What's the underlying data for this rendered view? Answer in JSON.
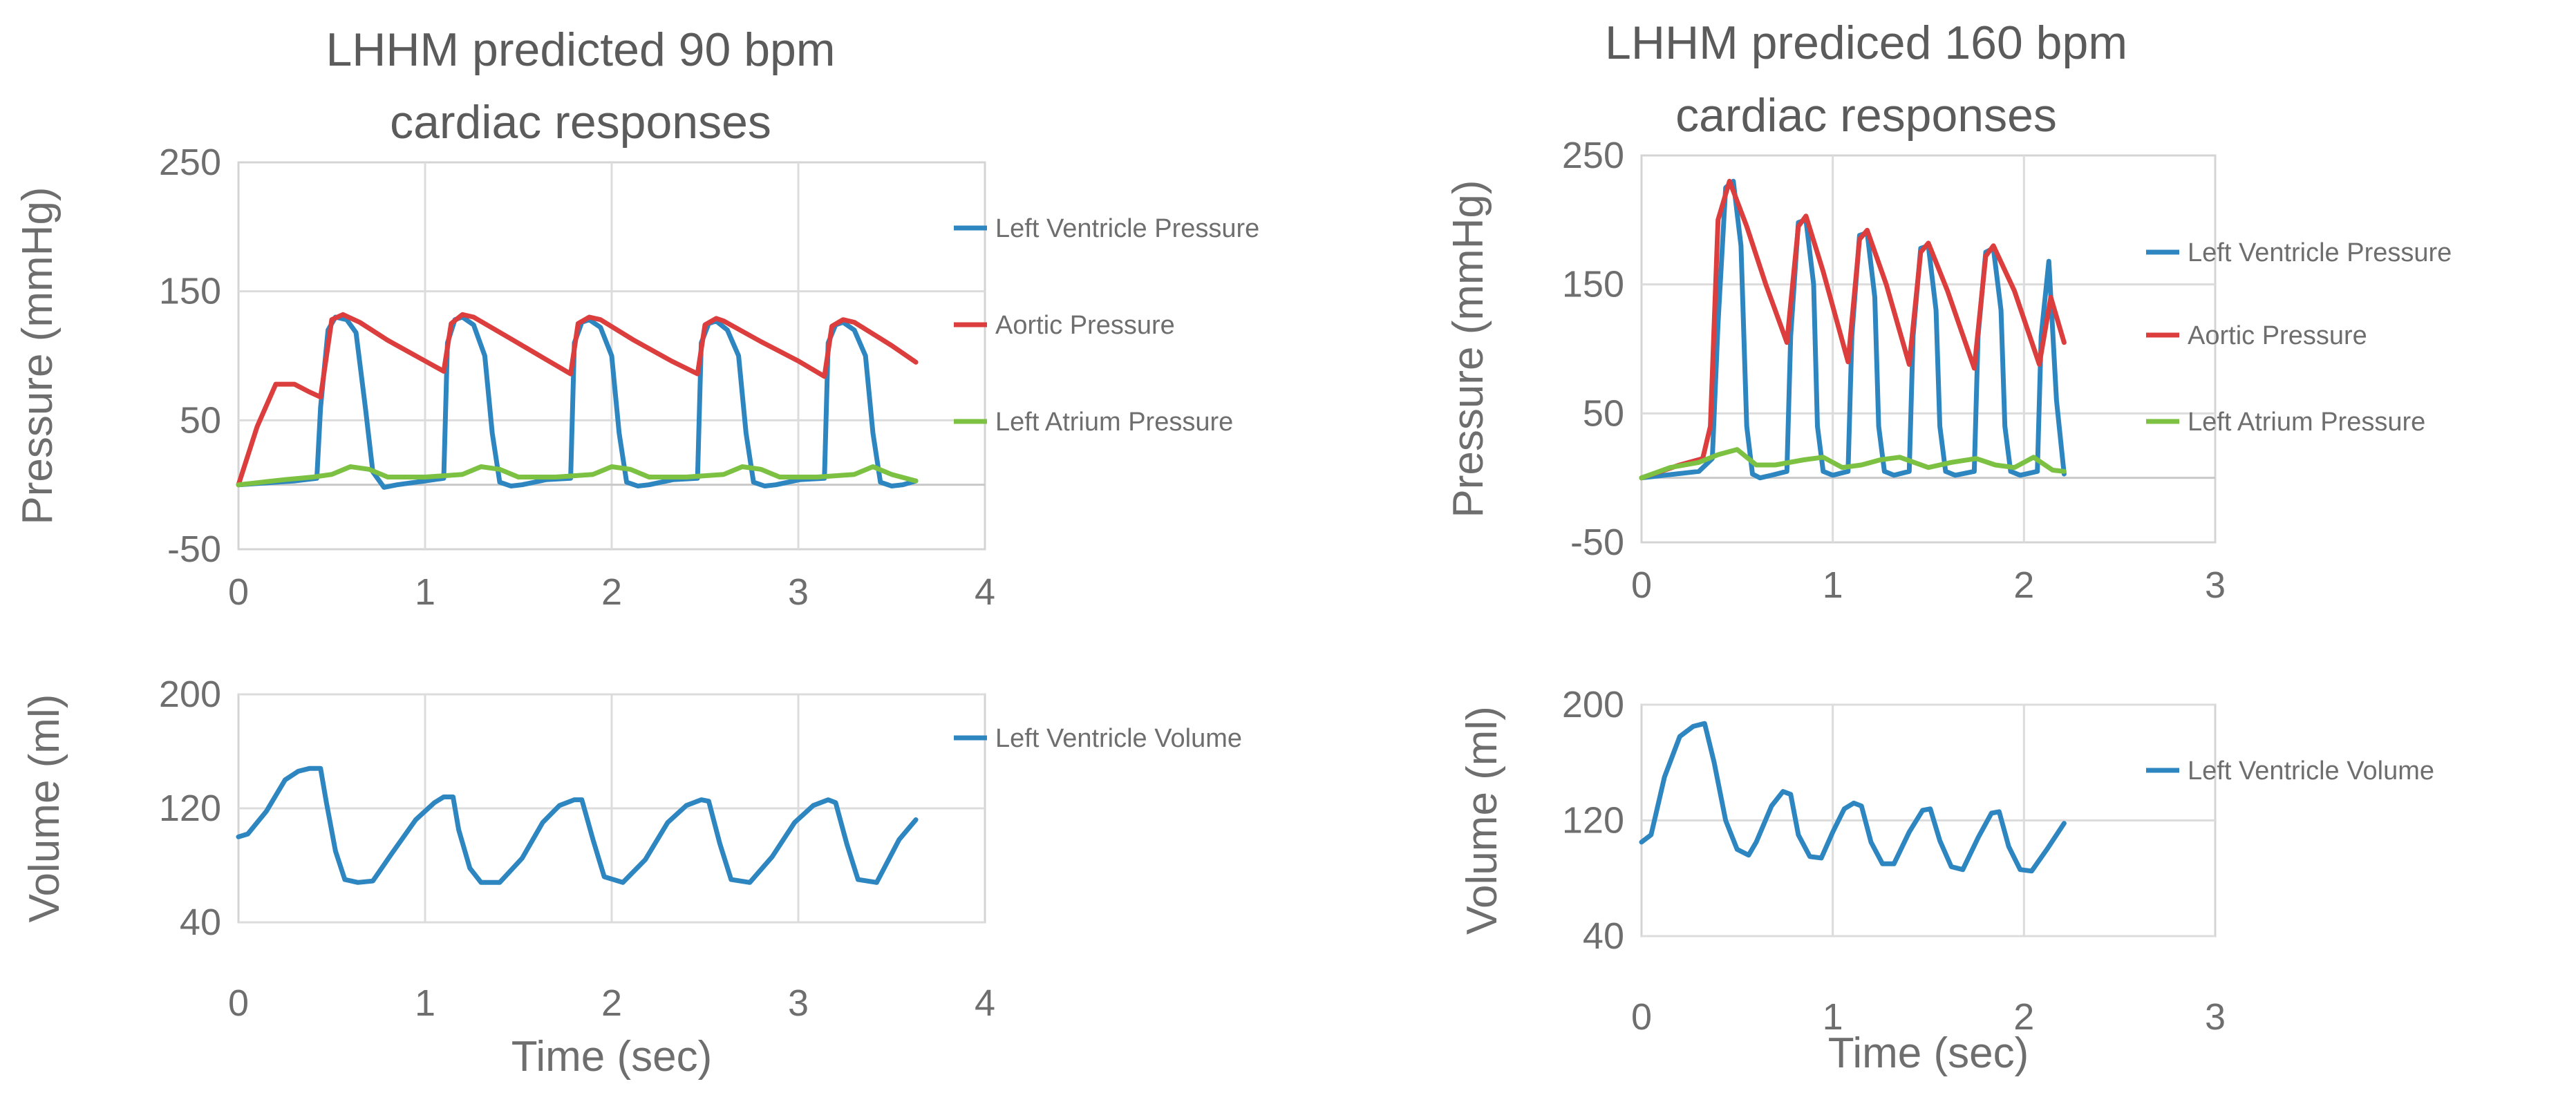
{
  "colors": {
    "lv_pressure": "#2e86c1",
    "aortic": "#dc3d3d",
    "la_pressure": "#7cc142",
    "lv_volume": "#2e86c1"
  },
  "panels": [
    {
      "title": [
        "LHHM predicted 90 bpm",
        "cardiac responses"
      ],
      "pressure_ylabel": "Pressure (mmHg)",
      "volume_ylabel": "Volume (ml)",
      "xlabel": "Time (sec)",
      "pressure_yticks": [
        "250",
        "150",
        "50",
        "-50"
      ],
      "volume_yticks": [
        "200",
        "120",
        "40"
      ],
      "pressure_xticks": [
        "0",
        "1",
        "2",
        "3",
        "4"
      ],
      "volume_xticks": [
        "0",
        "1",
        "2",
        "3",
        "4"
      ],
      "legend_pressure": [
        "Left Ventricle Pressure",
        "Aortic Pressure",
        "Left Atrium Pressure"
      ],
      "legend_volume": [
        "Left Ventricle Volume"
      ]
    },
    {
      "title": [
        "LHHM prediced 160 bpm",
        "cardiac responses"
      ],
      "pressure_ylabel": "Pressure (mmHg)",
      "volume_ylabel": "Volume (ml)",
      "xlabel": "Time (sec)",
      "pressure_yticks": [
        "250",
        "150",
        "50",
        "-50"
      ],
      "volume_yticks": [
        "200",
        "120",
        "40"
      ],
      "pressure_xticks": [
        "0",
        "1",
        "2",
        "3"
      ],
      "volume_xticks": [
        "0",
        "1",
        "2",
        "3"
      ],
      "legend_pressure": [
        "Left Ventricle Pressure",
        "Aortic Pressure",
        "Left Atrium Pressure"
      ],
      "legend_volume": [
        "Left Ventricle Volume"
      ]
    }
  ],
  "chart_data": [
    {
      "type": "line",
      "title": "LHHM predicted 90 bpm cardiac responses",
      "xlabel": "",
      "ylabel": "Pressure (mmHg)",
      "xlim": [
        0,
        4
      ],
      "ylim": [
        -50,
        250
      ],
      "series": [
        {
          "name": "Left Ventricle Pressure",
          "x": [
            0,
            0.3,
            0.42,
            0.44,
            0.48,
            0.52,
            0.58,
            0.63,
            0.68,
            0.72,
            0.78,
            0.85,
            1.0,
            1.1,
            1.12,
            1.16,
            1.2,
            1.26,
            1.32,
            1.36,
            1.4,
            1.46,
            1.52,
            1.65,
            1.78,
            1.8,
            1.84,
            1.88,
            1.94,
            2.0,
            2.04,
            2.08,
            2.14,
            2.2,
            2.33,
            2.46,
            2.48,
            2.52,
            2.56,
            2.62,
            2.68,
            2.72,
            2.76,
            2.82,
            2.88,
            3.01,
            3.14,
            3.16,
            3.2,
            3.24,
            3.3,
            3.36,
            3.4,
            3.44,
            3.5,
            3.56,
            3.63
          ],
          "y": [
            0,
            3,
            5,
            60,
            120,
            130,
            128,
            118,
            60,
            10,
            -2,
            0,
            3,
            5,
            110,
            128,
            130,
            124,
            100,
            40,
            2,
            -1,
            0,
            4,
            5,
            110,
            126,
            128,
            122,
            100,
            40,
            2,
            -1,
            0,
            4,
            5,
            110,
            125,
            127,
            120,
            100,
            40,
            2,
            -1,
            0,
            4,
            5,
            110,
            124,
            126,
            120,
            100,
            40,
            2,
            -1,
            0,
            3
          ]
        },
        {
          "name": "Aortic Pressure",
          "x": [
            0,
            0.1,
            0.2,
            0.3,
            0.38,
            0.44,
            0.5,
            0.56,
            0.65,
            0.8,
            1.0,
            1.1,
            1.14,
            1.2,
            1.26,
            1.45,
            1.65,
            1.78,
            1.82,
            1.88,
            1.94,
            2.12,
            2.32,
            2.46,
            2.5,
            2.56,
            2.6,
            2.8,
            3.0,
            3.14,
            3.18,
            3.24,
            3.3,
            3.5,
            3.63
          ],
          "y": [
            0,
            45,
            78,
            78,
            72,
            68,
            128,
            132,
            126,
            112,
            96,
            88,
            125,
            132,
            130,
            114,
            97,
            86,
            125,
            130,
            128,
            112,
            96,
            86,
            124,
            129,
            127,
            111,
            96,
            84,
            123,
            128,
            126,
            108,
            95
          ]
        },
        {
          "name": "Left Atrium Pressure",
          "x": [
            0,
            0.25,
            0.4,
            0.5,
            0.6,
            0.7,
            0.8,
            1.0,
            1.2,
            1.3,
            1.4,
            1.5,
            1.7,
            1.9,
            2.0,
            2.1,
            2.2,
            2.4,
            2.6,
            2.7,
            2.8,
            2.9,
            3.1,
            3.3,
            3.4,
            3.5,
            3.63
          ],
          "y": [
            0,
            4,
            6,
            8,
            14,
            12,
            6,
            6,
            8,
            14,
            12,
            6,
            6,
            8,
            14,
            12,
            6,
            6,
            8,
            14,
            12,
            6,
            6,
            8,
            14,
            8,
            3
          ]
        }
      ]
    },
    {
      "type": "line",
      "title": "",
      "xlabel": "Time (sec)",
      "ylabel": "Volume (ml)",
      "xlim": [
        0,
        4
      ],
      "ylim": [
        40,
        200
      ],
      "series": [
        {
          "name": "Left Ventricle Volume",
          "x": [
            0,
            0.05,
            0.15,
            0.25,
            0.32,
            0.38,
            0.44,
            0.47,
            0.52,
            0.57,
            0.64,
            0.72,
            0.82,
            0.95,
            1.05,
            1.1,
            1.15,
            1.18,
            1.24,
            1.3,
            1.4,
            1.52,
            1.63,
            1.72,
            1.8,
            1.84,
            1.9,
            1.96,
            2.06,
            2.18,
            2.3,
            2.4,
            2.48,
            2.52,
            2.58,
            2.64,
            2.74,
            2.86,
            2.98,
            3.08,
            3.16,
            3.2,
            3.26,
            3.32,
            3.42,
            3.54,
            3.63
          ],
          "y": [
            100,
            102,
            118,
            140,
            146,
            148,
            148,
            125,
            90,
            70,
            68,
            69,
            88,
            112,
            124,
            128,
            128,
            105,
            78,
            68,
            68,
            85,
            110,
            122,
            126,
            126,
            98,
            72,
            68,
            84,
            110,
            122,
            126,
            125,
            95,
            70,
            68,
            86,
            110,
            122,
            126,
            124,
            95,
            70,
            68,
            98,
            112
          ]
        }
      ]
    },
    {
      "type": "line",
      "title": "LHHM prediced 160 bpm cardiac responses",
      "xlabel": "",
      "ylabel": "Pressure (mmHg)",
      "xlim": [
        0,
        3
      ],
      "ylim": [
        -50,
        250
      ],
      "series": [
        {
          "name": "Left Ventricle Pressure",
          "x": [
            0,
            0.3,
            0.37,
            0.4,
            0.44,
            0.48,
            0.52,
            0.55,
            0.58,
            0.62,
            0.68,
            0.76,
            0.78,
            0.82,
            0.86,
            0.9,
            0.92,
            0.95,
            1.0,
            1.08,
            1.1,
            1.14,
            1.18,
            1.22,
            1.24,
            1.27,
            1.32,
            1.4,
            1.42,
            1.46,
            1.5,
            1.54,
            1.56,
            1.59,
            1.64,
            1.74,
            1.76,
            1.8,
            1.84,
            1.88,
            1.9,
            1.93,
            1.98,
            2.07,
            2.09,
            2.13,
            2.17,
            2.21
          ],
          "y": [
            0,
            5,
            15,
            120,
            225,
            230,
            180,
            40,
            3,
            0,
            2,
            5,
            110,
            198,
            200,
            150,
            40,
            5,
            2,
            5,
            110,
            188,
            190,
            140,
            40,
            5,
            2,
            5,
            110,
            178,
            180,
            130,
            40,
            5,
            2,
            5,
            110,
            175,
            178,
            130,
            40,
            5,
            2,
            5,
            110,
            168,
            60,
            3
          ]
        },
        {
          "name": "Aortic Pressure",
          "x": [
            0,
            0.2,
            0.32,
            0.36,
            0.4,
            0.46,
            0.55,
            0.65,
            0.76,
            0.82,
            0.86,
            0.95,
            1.08,
            1.14,
            1.18,
            1.28,
            1.4,
            1.46,
            1.5,
            1.6,
            1.74,
            1.8,
            1.84,
            1.95,
            2.08,
            2.14,
            2.21
          ],
          "y": [
            0,
            10,
            15,
            40,
            200,
            230,
            195,
            150,
            105,
            195,
            203,
            160,
            90,
            185,
            192,
            150,
            88,
            175,
            182,
            145,
            85,
            172,
            180,
            145,
            88,
            140,
            105
          ]
        },
        {
          "name": "Left Atrium Pressure",
          "x": [
            0,
            0.15,
            0.3,
            0.4,
            0.5,
            0.6,
            0.7,
            0.85,
            0.95,
            1.05,
            1.15,
            1.25,
            1.35,
            1.5,
            1.62,
            1.75,
            1.85,
            1.95,
            2.05,
            2.15,
            2.21
          ],
          "y": [
            0,
            8,
            12,
            18,
            22,
            10,
            10,
            14,
            16,
            8,
            10,
            14,
            16,
            8,
            12,
            15,
            10,
            8,
            16,
            6,
            5
          ]
        }
      ]
    },
    {
      "type": "line",
      "title": "",
      "xlabel": "Time (sec)",
      "ylabel": "Volume (ml)",
      "xlim": [
        0,
        3
      ],
      "ylim": [
        40,
        200
      ],
      "series": [
        {
          "name": "Left Ventricle Volume",
          "x": [
            0,
            0.05,
            0.12,
            0.2,
            0.27,
            0.33,
            0.38,
            0.44,
            0.5,
            0.56,
            0.6,
            0.68,
            0.74,
            0.78,
            0.82,
            0.88,
            0.94,
            1.0,
            1.06,
            1.11,
            1.15,
            1.2,
            1.26,
            1.32,
            1.4,
            1.47,
            1.51,
            1.56,
            1.62,
            1.68,
            1.76,
            1.83,
            1.87,
            1.92,
            1.98,
            2.04,
            2.12,
            2.21
          ],
          "y": [
            105,
            110,
            150,
            178,
            185,
            187,
            160,
            120,
            100,
            96,
            105,
            130,
            140,
            138,
            110,
            95,
            94,
            112,
            128,
            132,
            130,
            105,
            90,
            90,
            112,
            127,
            128,
            106,
            88,
            86,
            108,
            125,
            126,
            102,
            86,
            85,
            100,
            118
          ]
        }
      ]
    }
  ]
}
